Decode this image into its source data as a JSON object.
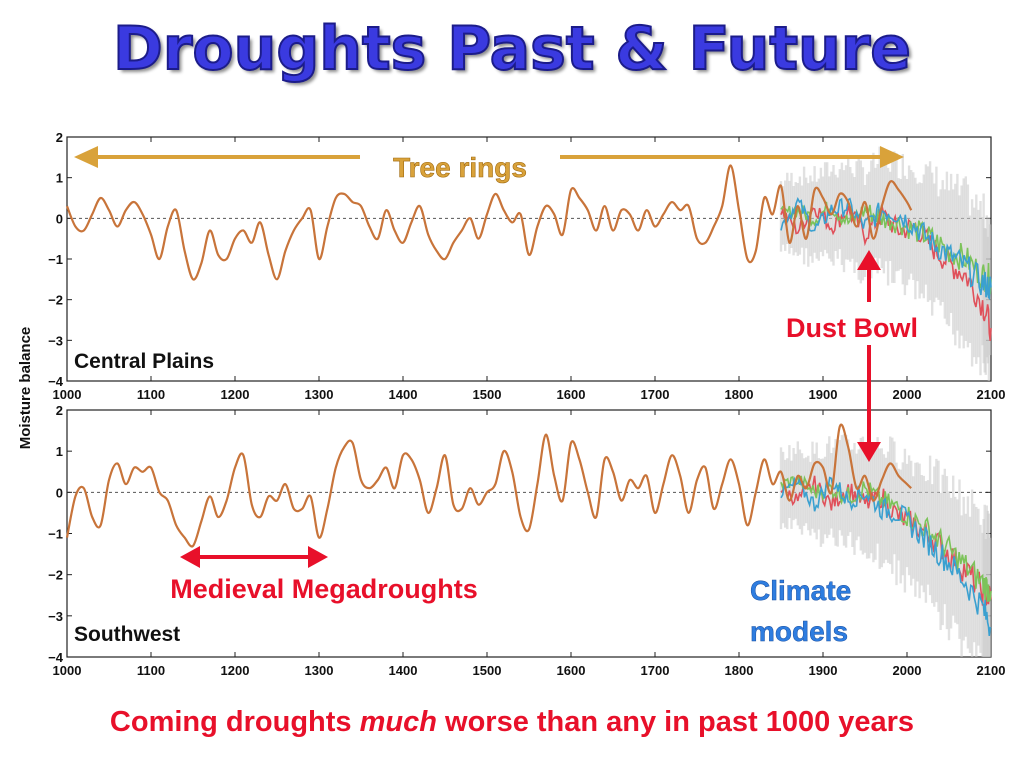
{
  "slide": {
    "title": "Droughts Past & Future",
    "footer_before": "Coming droughts ",
    "footer_emph": "much",
    "footer_after": " worse than any in past 1000 years"
  },
  "annotations": {
    "tree_rings": "Tree rings",
    "dust_bowl": "Dust Bowl",
    "medieval": "Medieval Megadroughts",
    "climate_line1": "Climate",
    "climate_line2": "models"
  },
  "colors": {
    "title": "#3a3ae0",
    "tree_ring_line": "#c8743a",
    "model_red": "#e0505a",
    "model_green": "#7cc35a",
    "model_blue": "#3aa0d0",
    "model_envelope": "#c8c8c8",
    "tree_rings_arrow": "#d9a23a",
    "red_arrow": "#e8102a",
    "climate_text": "#2e7de0"
  },
  "chart_data": [
    {
      "type": "line",
      "panel": "Central Plains",
      "ylabel": "Moisture balance",
      "xlim": [
        1000,
        2100
      ],
      "ylim": [
        -4,
        2
      ],
      "xticks": [
        1000,
        1100,
        1200,
        1300,
        1400,
        1500,
        1600,
        1700,
        1800,
        1900,
        2000,
        2100
      ],
      "yticks": [
        2,
        1,
        0,
        -1,
        -2,
        -3,
        -4
      ],
      "zero_line": "dashed",
      "series": [
        {
          "role": "tree_rings",
          "x": [
            1000,
            1010,
            1020,
            1030,
            1040,
            1050,
            1060,
            1070,
            1080,
            1090,
            1100,
            1110,
            1120,
            1130,
            1140,
            1150,
            1160,
            1170,
            1180,
            1190,
            1200,
            1210,
            1220,
            1230,
            1240,
            1250,
            1260,
            1270,
            1280,
            1290,
            1300,
            1310,
            1320,
            1330,
            1340,
            1350,
            1360,
            1370,
            1380,
            1390,
            1400,
            1410,
            1420,
            1430,
            1440,
            1450,
            1460,
            1470,
            1480,
            1490,
            1500,
            1510,
            1520,
            1530,
            1540,
            1550,
            1560,
            1570,
            1580,
            1590,
            1600,
            1610,
            1620,
            1630,
            1640,
            1650,
            1660,
            1670,
            1680,
            1690,
            1700,
            1710,
            1720,
            1730,
            1740,
            1750,
            1760,
            1770,
            1780,
            1790,
            1800,
            1810,
            1820,
            1830,
            1840,
            1850,
            1860,
            1870,
            1880,
            1890,
            1900,
            1910,
            1920,
            1930,
            1940,
            1950,
            1960,
            1970,
            1980,
            1990,
            2000,
            2005
          ],
          "values": [
            0.3,
            -0.2,
            -0.3,
            0.1,
            0.5,
            0.2,
            -0.2,
            0.2,
            0.4,
            0.1,
            -0.4,
            -1.0,
            -0.2,
            0.2,
            -0.8,
            -1.5,
            -1.1,
            -0.3,
            -0.9,
            -1.0,
            -0.5,
            -0.3,
            -0.6,
            -0.1,
            -0.9,
            -1.5,
            -0.8,
            -0.3,
            0.0,
            0.2,
            -1.0,
            -0.2,
            0.5,
            0.6,
            0.4,
            0.3,
            -0.2,
            -0.5,
            0.2,
            -0.3,
            -0.6,
            -0.1,
            0.3,
            -0.4,
            -0.8,
            -1.0,
            -0.6,
            -0.3,
            0.0,
            -0.5,
            0.1,
            0.6,
            0.2,
            -0.1,
            0.1,
            -0.9,
            -0.2,
            0.3,
            0.1,
            -0.4,
            0.7,
            0.5,
            0.2,
            -0.3,
            0.3,
            -0.3,
            0.2,
            0.1,
            -0.3,
            0.2,
            -0.2,
            0.1,
            0.4,
            0.2,
            0.3,
            -0.5,
            -0.6,
            -0.2,
            0.3,
            1.3,
            0.2,
            -1.0,
            -0.8,
            0.5,
            0.1,
            0.8,
            -0.6,
            0.3,
            -0.5,
            0.7,
            0.5,
            0.1,
            0.6,
            0.4,
            -0.2,
            0.4,
            -0.5,
            0.3,
            0.9,
            0.7,
            0.4,
            0.2
          ]
        },
        {
          "role": "model_red",
          "x": [
            1850,
            1870,
            1890,
            1910,
            1930,
            1950,
            1970,
            1990,
            2010,
            2030,
            2050,
            2070,
            2090,
            2100
          ],
          "values": [
            0.2,
            -0.3,
            0.3,
            -0.2,
            0.2,
            -0.4,
            0.1,
            -0.3,
            -0.2,
            -0.7,
            -1.1,
            -1.4,
            -2.1,
            -2.7
          ]
        },
        {
          "role": "model_green",
          "x": [
            1850,
            1870,
            1890,
            1910,
            1930,
            1950,
            1970,
            1990,
            2010,
            2030,
            2050,
            2070,
            2090,
            2100
          ],
          "values": [
            0.1,
            0.2,
            0.0,
            0.3,
            -0.1,
            0.2,
            0.0,
            -0.1,
            -0.3,
            -0.5,
            -0.8,
            -1.0,
            -1.4,
            -1.5
          ]
        },
        {
          "role": "model_blue",
          "x": [
            1850,
            1870,
            1890,
            1910,
            1930,
            1950,
            1970,
            1990,
            2010,
            2030,
            2050,
            2070,
            2090,
            2100
          ],
          "values": [
            -0.2,
            0.4,
            -0.3,
            0.2,
            0.3,
            -0.2,
            0.2,
            0.1,
            -0.2,
            -0.6,
            -0.9,
            -1.2,
            -1.6,
            -1.7
          ]
        }
      ]
    },
    {
      "type": "line",
      "panel": "Southwest",
      "ylabel": "Moisture balance",
      "xlim": [
        1000,
        2100
      ],
      "ylim": [
        -4,
        2
      ],
      "xticks": [
        1000,
        1100,
        1200,
        1300,
        1400,
        1500,
        1600,
        1700,
        1800,
        1900,
        2000,
        2100
      ],
      "yticks": [
        2,
        1,
        0,
        -1,
        -2,
        -3,
        -4
      ],
      "zero_line": "dashed",
      "series": [
        {
          "role": "tree_rings",
          "x": [
            1000,
            1010,
            1020,
            1030,
            1040,
            1050,
            1060,
            1070,
            1080,
            1090,
            1100,
            1110,
            1120,
            1130,
            1140,
            1150,
            1160,
            1170,
            1180,
            1190,
            1200,
            1210,
            1220,
            1230,
            1240,
            1250,
            1260,
            1270,
            1280,
            1290,
            1300,
            1310,
            1320,
            1330,
            1340,
            1350,
            1360,
            1370,
            1380,
            1390,
            1400,
            1410,
            1420,
            1430,
            1440,
            1450,
            1460,
            1470,
            1480,
            1490,
            1500,
            1510,
            1520,
            1530,
            1540,
            1550,
            1560,
            1570,
            1580,
            1590,
            1600,
            1610,
            1620,
            1630,
            1640,
            1650,
            1660,
            1670,
            1680,
            1690,
            1700,
            1710,
            1720,
            1730,
            1740,
            1750,
            1760,
            1770,
            1780,
            1790,
            1800,
            1810,
            1820,
            1830,
            1840,
            1850,
            1860,
            1870,
            1880,
            1890,
            1900,
            1910,
            1920,
            1930,
            1940,
            1950,
            1960,
            1970,
            1980,
            1990,
            2000,
            2005
          ],
          "values": [
            -1.1,
            -0.1,
            0.1,
            -0.6,
            -0.8,
            0.3,
            0.7,
            0.2,
            0.6,
            0.5,
            0.6,
            0.0,
            -0.2,
            -0.8,
            -1.1,
            -1.3,
            -0.7,
            -0.1,
            -0.6,
            -0.2,
            0.6,
            0.9,
            -0.3,
            -0.6,
            -0.1,
            -0.2,
            0.2,
            -0.4,
            -0.4,
            -0.1,
            -1.1,
            -0.4,
            0.6,
            1.1,
            1.2,
            0.3,
            0.1,
            0.3,
            0.6,
            0.1,
            0.9,
            0.8,
            0.3,
            -0.5,
            0.1,
            0.9,
            -0.3,
            -0.4,
            0.1,
            -0.3,
            0.0,
            0.2,
            1.0,
            0.5,
            -0.6,
            -0.9,
            0.2,
            1.4,
            0.4,
            -0.2,
            1.2,
            0.8,
            0.0,
            -0.6,
            0.8,
            0.5,
            -0.2,
            0.3,
            0.1,
            0.4,
            -0.5,
            0.2,
            0.9,
            0.4,
            -0.5,
            0.3,
            0.6,
            -0.4,
            0.2,
            0.8,
            0.2,
            -0.8,
            0.0,
            0.8,
            0.2,
            0.5,
            -0.2,
            0.4,
            0.1,
            0.7,
            0.6,
            0.0,
            1.6,
            1.1,
            0.1,
            0.4,
            -0.2,
            0.3,
            0.7,
            0.4,
            0.2,
            0.1
          ]
        },
        {
          "role": "model_red",
          "x": [
            1850,
            1870,
            1890,
            1910,
            1930,
            1950,
            1970,
            1990,
            2010,
            2030,
            2050,
            2070,
            2090,
            2100
          ],
          "values": [
            0.1,
            -0.2,
            0.2,
            -0.3,
            0.1,
            -0.3,
            -0.1,
            -0.6,
            -0.8,
            -1.1,
            -1.5,
            -1.9,
            -2.4,
            -2.6
          ]
        },
        {
          "role": "model_green",
          "x": [
            1850,
            1870,
            1890,
            1910,
            1930,
            1950,
            1970,
            1990,
            2010,
            2030,
            2050,
            2070,
            2090,
            2100
          ],
          "values": [
            0.2,
            0.3,
            0.0,
            0.1,
            -0.1,
            0.1,
            -0.2,
            -0.4,
            -0.7,
            -1.0,
            -1.4,
            -1.8,
            -2.2,
            -2.4
          ]
        },
        {
          "role": "model_blue",
          "x": [
            1850,
            1870,
            1890,
            1910,
            1930,
            1950,
            1970,
            1990,
            2010,
            2030,
            2050,
            2070,
            2090,
            2100
          ],
          "values": [
            0.0,
            0.2,
            -0.3,
            0.3,
            -0.2,
            0.0,
            -0.4,
            -0.5,
            -0.9,
            -1.3,
            -1.7,
            -2.2,
            -2.8,
            -3.3
          ]
        }
      ]
    }
  ]
}
